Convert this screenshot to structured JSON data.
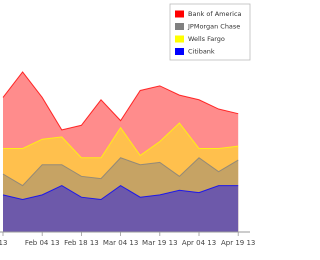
{
  "chart_data": {
    "type": "stacked_area",
    "categories": [
      "13",
      null,
      "Feb 04 13",
      null,
      "Feb 18 13",
      null,
      "Mar 04 13",
      null,
      "Mar 19 13",
      null,
      "Apr 04 13",
      null,
      "Apr 19 13"
    ],
    "series": [
      {
        "name": "Bank of America",
        "color": "#ff0000",
        "values": [
          22,
          33,
          18,
          3,
          14,
          25,
          3,
          28,
          24,
          12,
          21,
          17,
          14
        ]
      },
      {
        "name": "JPMorgan Chase",
        "color": "#808080",
        "values": [
          9,
          6,
          13,
          9,
          9,
          9,
          12,
          14,
          14,
          6,
          15,
          6,
          11
        ]
      },
      {
        "name": "Wells Fargo",
        "color": "#ffff00",
        "values": [
          11,
          16,
          11,
          12,
          8,
          9,
          13,
          4,
          9,
          23,
          4,
          10,
          6
        ]
      },
      {
        "name": "Citibank",
        "color": "#0000ff",
        "values": [
          16,
          14,
          16,
          20,
          15,
          14,
          20,
          15,
          16,
          18,
          17,
          20,
          20
        ]
      }
    ],
    "stack_order": [
      "Citibank",
      "JPMorgan Chase",
      "Wells Fargo",
      "Bank of America"
    ],
    "ylim": [
      0,
      100
    ],
    "legend": "top-right"
  }
}
